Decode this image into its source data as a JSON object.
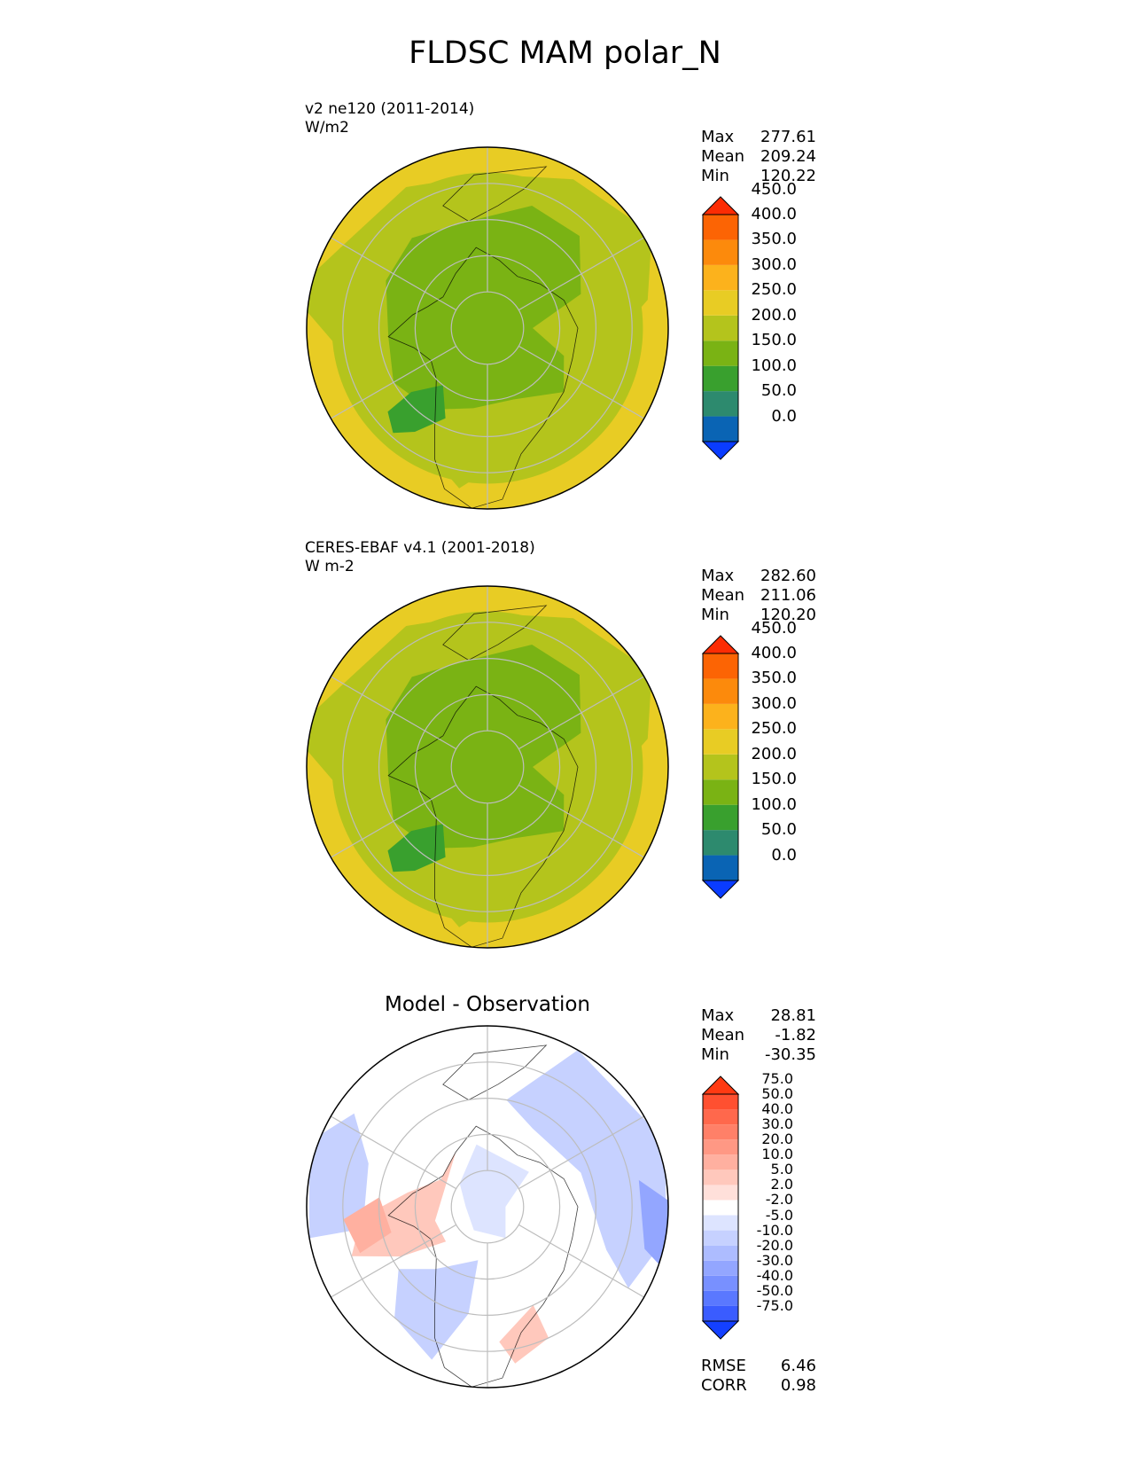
{
  "title": "FLDSC MAM polar_N",
  "panels": [
    {
      "id": "model",
      "label_line1": "v2 ne120 (2011-2014)",
      "label_line2": "W/m2",
      "stats": {
        "max_label": "Max",
        "max": "277.61",
        "mean_label": "Mean",
        "mean": "209.24",
        "min_label": "Min",
        "min": "120.22"
      },
      "colorbar": {
        "levels": [
          "0.0",
          "50.0",
          "100.0",
          "150.0",
          "200.0",
          "250.0",
          "300.0",
          "350.0",
          "400.0",
          "450.0"
        ],
        "colors": [
          "#0a3cff",
          "#0a64b4",
          "#2d8a6e",
          "#39a02e",
          "#7ab314",
          "#b4c41c",
          "#e8cc24",
          "#fcb21c",
          "#fc8a0c",
          "#fc6404",
          "#fc2c04"
        ]
      }
    },
    {
      "id": "obs",
      "label_line1": "CERES-EBAF v4.1 (2001-2018)",
      "label_line2": "W m-2",
      "stats": {
        "max_label": "Max",
        "max": "282.60",
        "mean_label": "Mean",
        "mean": "211.06",
        "min_label": "Min",
        "min": "120.20"
      },
      "colorbar": {
        "levels": [
          "0.0",
          "50.0",
          "100.0",
          "150.0",
          "200.0",
          "250.0",
          "300.0",
          "350.0",
          "400.0",
          "450.0"
        ],
        "colors": [
          "#0a3cff",
          "#0a64b4",
          "#2d8a6e",
          "#39a02e",
          "#7ab314",
          "#b4c41c",
          "#e8cc24",
          "#fcb21c",
          "#fc8a0c",
          "#fc6404",
          "#fc2c04"
        ]
      }
    },
    {
      "id": "diff",
      "title": "Model - Observation",
      "stats": {
        "max_label": "Max",
        "max": "28.81",
        "mean_label": "Mean",
        "mean": "-1.82",
        "min_label": "Min",
        "min": "-30.35"
      },
      "extra": {
        "rmse_label": "RMSE",
        "rmse": "6.46",
        "corr_label": "CORR",
        "corr": "0.98"
      },
      "colorbar": {
        "levels": [
          "-75.0",
          "-50.0",
          "-40.0",
          "-30.0",
          "-20.0",
          "-10.0",
          "-5.0",
          "-2.0",
          "2.0",
          "5.0",
          "10.0",
          "20.0",
          "30.0",
          "40.0",
          "50.0",
          "75.0"
        ],
        "colors": [
          "#1440ff",
          "#3a5cff",
          "#5a78ff",
          "#7890ff",
          "#93a6ff",
          "#adbcff",
          "#c6d1ff",
          "#dde4ff",
          "#ffffff",
          "#ffe0da",
          "#ffc8bc",
          "#ffb0a0",
          "#ff9884",
          "#ff8068",
          "#ff684c",
          "#ff5030",
          "#ff3a12"
        ]
      }
    }
  ],
  "chart_data": [
    {
      "type": "heatmap",
      "title": "v2 ne120 (2011-2014)",
      "unit": "W/m2",
      "max": 277.61,
      "mean": 209.24,
      "min": 120.22,
      "levels": [
        0,
        50,
        100,
        150,
        200,
        250,
        300,
        350,
        400,
        450
      ]
    },
    {
      "type": "heatmap",
      "title": "CERES-EBAF v4.1 (2001-2018)",
      "unit": "W m-2",
      "max": 282.6,
      "mean": 211.06,
      "min": 120.2,
      "levels": [
        0,
        50,
        100,
        150,
        200,
        250,
        300,
        350,
        400,
        450
      ]
    },
    {
      "type": "heatmap",
      "title": "Model - Observation",
      "max": 28.81,
      "mean": -1.82,
      "min": -30.35,
      "rmse": 6.46,
      "corr": 0.98,
      "levels": [
        -75,
        -50,
        -40,
        -30,
        -20,
        -10,
        -5,
        -2,
        2,
        5,
        10,
        20,
        30,
        40,
        50,
        75
      ]
    }
  ]
}
